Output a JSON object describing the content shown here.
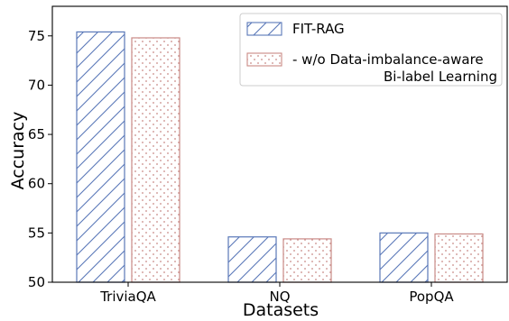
{
  "chart_data": {
    "type": "bar",
    "title": "",
    "xlabel": "Datasets",
    "ylabel": "Accuracy",
    "categories": [
      "TriviaQA",
      "NQ",
      "PopQA"
    ],
    "ylim": [
      50,
      78
    ],
    "yticks": [
      50,
      55,
      60,
      65,
      70,
      75
    ],
    "grid": false,
    "legend_position": "top-right",
    "series": [
      {
        "name": "FIT-RAG",
        "values": [
          75.4,
          54.6,
          55.0
        ],
        "color": "#4c72b0",
        "pattern": "diagonal-hatch"
      },
      {
        "name": "- w/o Data-imbalance-aware\nBi-label Learning",
        "values": [
          74.8,
          54.4,
          54.9
        ],
        "color": "#dd8452",
        "pattern": "dots"
      }
    ]
  }
}
